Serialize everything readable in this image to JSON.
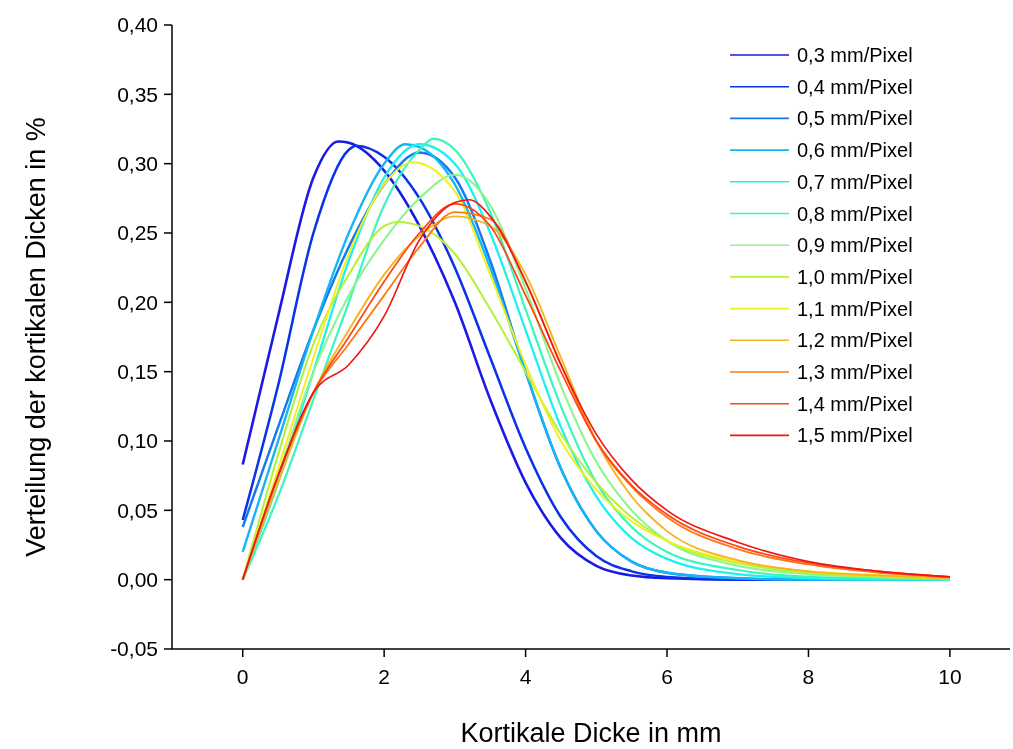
{
  "chart_data": {
    "type": "line",
    "xlabel": "Kortikale Dicke in mm",
    "ylabel": "Verteilung der kortikalen Dicken in %",
    "xlim": [
      -1,
      10.85
    ],
    "xticks": [
      0,
      2,
      4,
      6,
      8,
      10
    ],
    "ylim": [
      -0.05,
      0.4
    ],
    "yticks": [
      {
        "value": -0.05,
        "label": "-0,05"
      },
      {
        "value": 0,
        "label": "0,00"
      },
      {
        "value": 0.05,
        "label": "0,05"
      },
      {
        "value": 0.1,
        "label": "0,10"
      },
      {
        "value": 0.15,
        "label": "0,15"
      },
      {
        "value": 0.2,
        "label": "0,20"
      },
      {
        "value": 0.25,
        "label": "0,25"
      },
      {
        "value": 0.3,
        "label": "0,30"
      },
      {
        "value": 0.35,
        "label": "0,35"
      },
      {
        "value": 0.4,
        "label": "0,40"
      }
    ],
    "grid": false,
    "legend": "top right",
    "marker": "none",
    "line_style": "solid",
    "series": [
      {
        "name": "0,3 mm/Pixel",
        "color": "#1a1ae6",
        "x": [
          0,
          0.5,
          1,
          1.35,
          1.5,
          2,
          2.5,
          3,
          3.5,
          4,
          4.5,
          5,
          5.5,
          6,
          7,
          8
        ],
        "values": [
          0.083,
          0.19,
          0.29,
          0.316,
          0.315,
          0.295,
          0.255,
          0.2,
          0.13,
          0.07,
          0.03,
          0.01,
          0.003,
          0.001,
          0,
          0
        ]
      },
      {
        "name": "0,4 mm/Pixel",
        "color": "#0a32e8",
        "x": [
          0,
          0.5,
          1,
          1.5,
          1.6,
          2,
          2.5,
          3,
          3.5,
          4,
          4.5,
          5,
          5.5,
          6,
          7,
          8
        ],
        "values": [
          0.043,
          0.14,
          0.25,
          0.31,
          0.313,
          0.305,
          0.275,
          0.225,
          0.16,
          0.095,
          0.045,
          0.017,
          0.006,
          0.002,
          0,
          0
        ]
      },
      {
        "name": "0,5 mm/Pixel",
        "color": "#1478f0",
        "x": [
          0,
          0.5,
          1,
          1.5,
          2,
          2.5,
          3,
          3.5,
          4,
          4.5,
          5,
          5.5,
          6,
          7,
          8,
          9,
          10
        ],
        "values": [
          0.038,
          0.11,
          0.18,
          0.24,
          0.285,
          0.308,
          0.29,
          0.23,
          0.15,
          0.08,
          0.035,
          0.013,
          0.005,
          0.001,
          0,
          0,
          0
        ]
      },
      {
        "name": "0,6 mm/Pixel",
        "color": "#14b4f5",
        "x": [
          0,
          0.5,
          1,
          1.5,
          2,
          2.3,
          2.5,
          3,
          3.5,
          4,
          4.5,
          5,
          5.5,
          6,
          7,
          8,
          9,
          10
        ],
        "values": [
          0.02,
          0.1,
          0.18,
          0.25,
          0.3,
          0.314,
          0.312,
          0.285,
          0.225,
          0.15,
          0.08,
          0.035,
          0.013,
          0.005,
          0.001,
          0,
          0,
          0
        ]
      },
      {
        "name": "0,7 mm/Pixel",
        "color": "#1ef0f0",
        "x": [
          0,
          0.5,
          1,
          1.5,
          2,
          2.5,
          3,
          3.5,
          4,
          4.5,
          5,
          5.5,
          6,
          7,
          8,
          9,
          10
        ],
        "values": [
          0,
          0.07,
          0.15,
          0.23,
          0.29,
          0.314,
          0.3,
          0.25,
          0.18,
          0.11,
          0.06,
          0.03,
          0.015,
          0.004,
          0.001,
          0,
          0
        ]
      },
      {
        "name": "0,8 mm/Pixel",
        "color": "#3cf5be",
        "x": [
          0,
          0.5,
          1,
          1.5,
          2,
          2.5,
          2.7,
          3,
          3.5,
          4,
          4.5,
          5,
          5.5,
          6,
          7,
          8,
          9,
          10
        ],
        "values": [
          0,
          0.06,
          0.13,
          0.2,
          0.27,
          0.31,
          0.318,
          0.31,
          0.265,
          0.195,
          0.125,
          0.07,
          0.038,
          0.02,
          0.007,
          0.002,
          0.001,
          0
        ]
      },
      {
        "name": "0,9 mm/Pixel",
        "color": "#8cf58c",
        "x": [
          0,
          0.5,
          1,
          1.5,
          2,
          2.5,
          3,
          3.5,
          4,
          4.5,
          5,
          5.5,
          6,
          7,
          8,
          9,
          10
        ],
        "values": [
          0,
          0.075,
          0.15,
          0.205,
          0.245,
          0.275,
          0.292,
          0.27,
          0.21,
          0.14,
          0.085,
          0.05,
          0.028,
          0.01,
          0.004,
          0.002,
          0.001
        ]
      },
      {
        "name": "1,0 mm/Pixel",
        "color": "#b4f03c",
        "x": [
          0,
          0.5,
          1,
          1.5,
          2,
          2.2,
          2.5,
          3,
          3.5,
          4,
          4.5,
          5,
          5.5,
          6,
          7,
          8,
          9,
          10
        ],
        "values": [
          0,
          0.09,
          0.17,
          0.22,
          0.255,
          0.258,
          0.255,
          0.235,
          0.195,
          0.15,
          0.105,
          0.07,
          0.045,
          0.028,
          0.012,
          0.005,
          0.002,
          0.001
        ]
      },
      {
        "name": "1,1 mm/Pixel",
        "color": "#f0f01e",
        "x": [
          0,
          0.5,
          1,
          1.5,
          2,
          2.4,
          3,
          3.5,
          4,
          4.5,
          5,
          5.5,
          6,
          7,
          8,
          9,
          10
        ],
        "values": [
          0,
          0.08,
          0.16,
          0.235,
          0.285,
          0.301,
          0.28,
          0.22,
          0.155,
          0.1,
          0.065,
          0.042,
          0.028,
          0.013,
          0.006,
          0.003,
          0.001
        ]
      },
      {
        "name": "1,2 mm/Pixel",
        "color": "#f5b41e",
        "x": [
          0,
          0.5,
          1,
          1.5,
          2,
          2.5,
          3,
          3.5,
          4,
          4.5,
          5,
          5.5,
          6,
          7,
          8,
          9,
          10
        ],
        "values": [
          0,
          0.07,
          0.135,
          0.18,
          0.22,
          0.248,
          0.262,
          0.255,
          0.22,
          0.16,
          0.1,
          0.06,
          0.035,
          0.014,
          0.006,
          0.003,
          0.001
        ]
      },
      {
        "name": "1,3 mm/Pixel",
        "color": "#ff7814",
        "x": [
          0,
          0.5,
          1,
          1.5,
          2,
          2.5,
          3,
          3.5,
          4,
          4.5,
          5,
          5.5,
          6,
          7,
          8,
          9,
          10
        ],
        "values": [
          0,
          0.075,
          0.135,
          0.17,
          0.205,
          0.24,
          0.265,
          0.26,
          0.215,
          0.155,
          0.1,
          0.067,
          0.045,
          0.022,
          0.011,
          0.005,
          0.002
        ]
      },
      {
        "name": "1,4 mm/Pixel",
        "color": "#ff4614",
        "x": [
          0,
          0.5,
          1,
          1.5,
          2,
          2.5,
          3,
          3.5,
          4,
          4.5,
          5,
          5.5,
          6,
          7,
          8,
          9,
          10
        ],
        "values": [
          0,
          0.075,
          0.135,
          0.175,
          0.215,
          0.25,
          0.271,
          0.255,
          0.205,
          0.15,
          0.1,
          0.068,
          0.047,
          0.024,
          0.012,
          0.006,
          0.002
        ]
      },
      {
        "name": "1,5 mm/Pixel",
        "color": "#f01414",
        "x": [
          0,
          0.5,
          1,
          1.5,
          2,
          2.5,
          3,
          3.2,
          3.5,
          4,
          4.5,
          5,
          5.5,
          6,
          7,
          8,
          9,
          10
        ],
        "values": [
          0,
          0.075,
          0.135,
          0.155,
          0.19,
          0.245,
          0.272,
          0.274,
          0.262,
          0.215,
          0.155,
          0.105,
          0.072,
          0.05,
          0.027,
          0.013,
          0.006,
          0.002
        ]
      }
    ]
  }
}
